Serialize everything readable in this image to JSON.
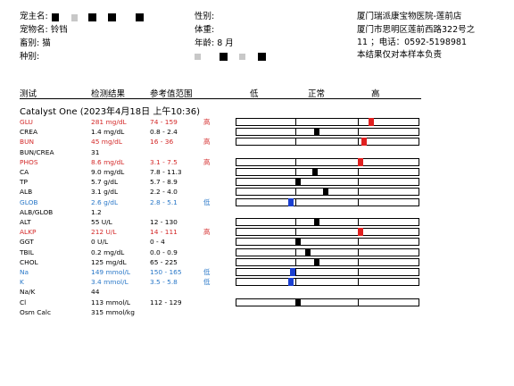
{
  "header": {
    "owner_label": "宠主名:",
    "pet_name": "宠物名: 铃铛",
    "species": "畜别: 猫",
    "breed_label": "种别:",
    "sex_label": "性别:",
    "weight_label": "体重:",
    "age": "年龄: 8 月",
    "clinic_name": "厦门瑞派康宝物医院-莲前店",
    "clinic_address_1": "厦门市思明区莲前西路322号之",
    "clinic_address_2": "11 ；电话：0592-5198981",
    "disclaimer": "本结果仅对本样本负责"
  },
  "columns": {
    "test": "测试",
    "result": "检测结果",
    "reference": "参考值范围",
    "low": "低",
    "normal": "正常",
    "high": "高"
  },
  "section_title": "Catalyst One (2023年4月18日 上午10:36)",
  "colors": {
    "high": "#d42a2a",
    "low": "#2a78c8",
    "marker_high": "#e02020",
    "marker_low": "#1a3fd0",
    "marker_normal": "#000000"
  },
  "rows": [
    {
      "test": "GLU",
      "result": "281 mg/dL",
      "ref": "74 - 159",
      "flag": "高",
      "status": "high",
      "level": 0.74
    },
    {
      "test": "CREA",
      "result": "1.4 mg/dL",
      "ref": "0.8 - 2.4",
      "flag": "",
      "status": "normal",
      "level": 0.44
    },
    {
      "test": "BUN",
      "result": "45 mg/dL",
      "ref": "16 - 36",
      "flag": "高",
      "status": "high",
      "level": 0.7
    },
    {
      "test": "BUN/CREA",
      "result": "31",
      "ref": "",
      "flag": "",
      "status": "none",
      "level": null
    },
    {
      "test": "PHOS",
      "result": "8.6 mg/dL",
      "ref": "3.1 - 7.5",
      "flag": "高",
      "status": "high",
      "level": 0.68
    },
    {
      "test": "CA",
      "result": "9.0 mg/dL",
      "ref": "7.8 - 11.3",
      "flag": "",
      "status": "normal",
      "level": 0.43
    },
    {
      "test": "TP",
      "result": "5.7 g/dL",
      "ref": "5.7 - 8.9",
      "flag": "",
      "status": "normal",
      "level": 0.34
    },
    {
      "test": "ALB",
      "result": "3.1 g/dL",
      "ref": "2.2 - 4.0",
      "flag": "",
      "status": "normal",
      "level": 0.49
    },
    {
      "test": "GLOB",
      "result": "2.6 g/dL",
      "ref": "2.8 - 5.1",
      "flag": "低",
      "status": "low",
      "level": 0.3
    },
    {
      "test": "ALB/GLOB",
      "result": "1.2",
      "ref": "",
      "flag": "",
      "status": "none",
      "level": null
    },
    {
      "test": "ALT",
      "result": "55 U/L",
      "ref": "12 - 130",
      "flag": "",
      "status": "normal",
      "level": 0.44
    },
    {
      "test": "ALKP",
      "result": "212 U/L",
      "ref": "14 - 111",
      "flag": "高",
      "status": "high",
      "level": 0.68
    },
    {
      "test": "GGT",
      "result": "0 U/L",
      "ref": "0 - 4",
      "flag": "",
      "status": "normal",
      "level": 0.34
    },
    {
      "test": "TBIL",
      "result": "0.2 mg/dL",
      "ref": "0.0 - 0.9",
      "flag": "",
      "status": "normal",
      "level": 0.39
    },
    {
      "test": "CHOL",
      "result": "125 mg/dL",
      "ref": "65 - 225",
      "flag": "",
      "status": "normal",
      "level": 0.44
    },
    {
      "test": "Na",
      "result": "149 mmol/L",
      "ref": "150 - 165",
      "flag": "低",
      "status": "low",
      "level": 0.31
    },
    {
      "test": "K",
      "result": "3.4 mmol/L",
      "ref": "3.5 - 5.8",
      "flag": "低",
      "status": "low",
      "level": 0.3
    },
    {
      "test": "Na/K",
      "result": "44",
      "ref": "",
      "flag": "",
      "status": "none",
      "level": null
    },
    {
      "test": "Cl",
      "result": "113 mmol/L",
      "ref": "112 - 129",
      "flag": "",
      "status": "normal",
      "level": 0.34
    },
    {
      "test": "Osm Calc",
      "result": "315 mmol/kg",
      "ref": "",
      "flag": "",
      "status": "none",
      "level": null
    }
  ]
}
